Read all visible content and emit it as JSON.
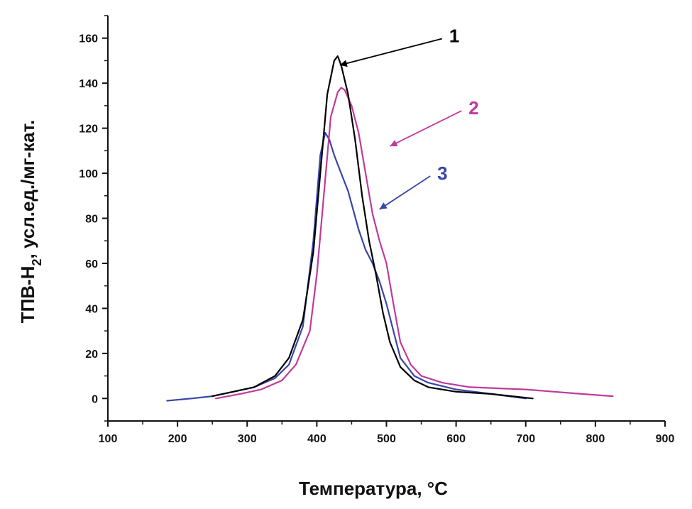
{
  "chart_data": {
    "type": "line",
    "xlabel": "Температура, °C",
    "ylabel_main": "ТПВ-Н",
    "ylabel_sub": "2",
    "ylabel_rest": ", усл.ед./мг-кат.",
    "xlim": [
      100,
      900
    ],
    "ylim": [
      -10,
      170
    ],
    "x_ticks": [
      100,
      200,
      300,
      400,
      500,
      600,
      700,
      800,
      900
    ],
    "x_tick_labels": [
      "100",
      "200",
      "300",
      "400",
      "500",
      "600",
      "700",
      "800",
      "900"
    ],
    "y_ticks": [
      0,
      20,
      40,
      60,
      80,
      100,
      120,
      140,
      160
    ],
    "y_tick_labels": [
      "0",
      "20",
      "40",
      "60",
      "80",
      "100",
      "120",
      "140",
      "160"
    ],
    "grid": false,
    "series": [
      {
        "name": "1",
        "color": "#000000",
        "x": [
          250,
          280,
          310,
          340,
          360,
          380,
          395,
          405,
          415,
          425,
          430,
          435,
          445,
          455,
          465,
          475,
          485,
          495,
          505,
          520,
          540,
          560,
          600,
          650,
          710
        ],
        "y": [
          1,
          3,
          5,
          10,
          18,
          35,
          65,
          100,
          135,
          150,
          152,
          148,
          135,
          115,
          90,
          70,
          55,
          38,
          25,
          14,
          8,
          5,
          3,
          2,
          0
        ],
        "label_x": 590,
        "label_y": 161,
        "arrow_to_x": 433,
        "arrow_to_y": 148
      },
      {
        "name": "2",
        "color": "#c03a9c",
        "x": [
          255,
          290,
          320,
          350,
          370,
          390,
          400,
          410,
          420,
          430,
          435,
          440,
          450,
          460,
          470,
          480,
          490,
          500,
          510,
          520,
          535,
          550,
          580,
          620,
          700,
          780,
          825
        ],
        "y": [
          0,
          2,
          4,
          8,
          15,
          30,
          55,
          90,
          125,
          136,
          138,
          137,
          130,
          118,
          100,
          82,
          70,
          60,
          42,
          25,
          15,
          10,
          7,
          5,
          4,
          2,
          1
        ],
        "label_x": 618,
        "label_y": 129,
        "arrow_to_x": 505,
        "arrow_to_y": 112
      },
      {
        "name": "3",
        "color": "#3846a8",
        "x": [
          185,
          220,
          250,
          280,
          310,
          340,
          360,
          380,
          395,
          405,
          412,
          418,
          425,
          435,
          445,
          460,
          470,
          480,
          490,
          500,
          510,
          520,
          540,
          560,
          600,
          650,
          700
        ],
        "y": [
          -1,
          0,
          1,
          3,
          5,
          9,
          15,
          32,
          70,
          108,
          118,
          115,
          108,
          100,
          92,
          75,
          66,
          60,
          52,
          42,
          30,
          18,
          10,
          7,
          4,
          2,
          0
        ],
        "label_x": 573,
        "label_y": 100,
        "arrow_to_x": 490,
        "arrow_to_y": 84
      }
    ]
  }
}
